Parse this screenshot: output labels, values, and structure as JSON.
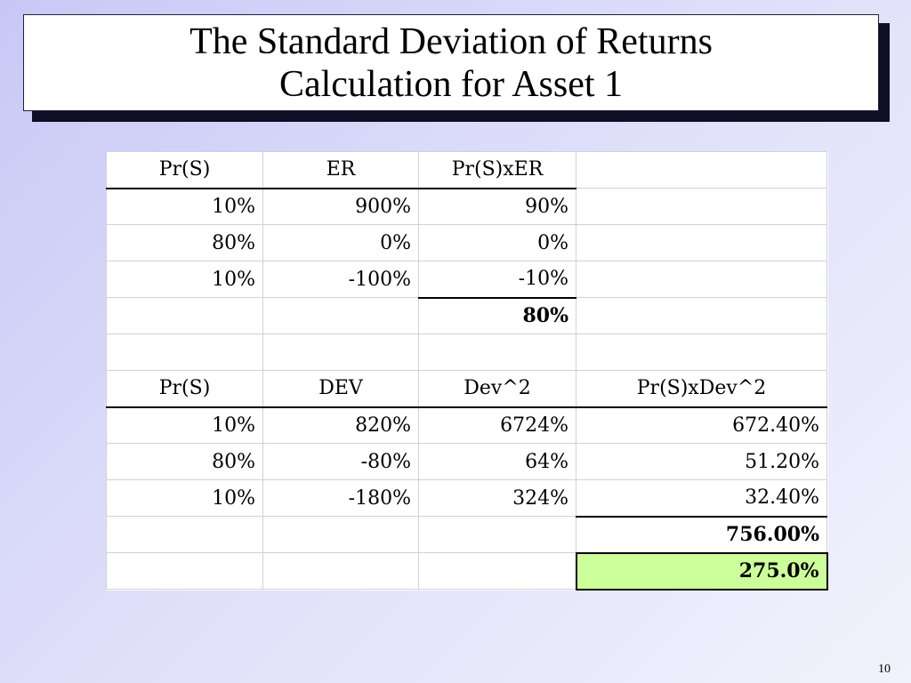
{
  "slide": {
    "title_line1": "The Standard Deviation of Returns",
    "title_line2": "Calculation for Asset 1",
    "page_number": "10"
  },
  "table1": {
    "headers": [
      "Pr(S)",
      "ER",
      "Pr(S)xER"
    ],
    "rows": [
      [
        "10%",
        "900%",
        "90%"
      ],
      [
        "80%",
        "0%",
        "0%"
      ],
      [
        "10%",
        "-100%",
        "-10%"
      ]
    ],
    "total": "80%"
  },
  "table2": {
    "headers": [
      "Pr(S)",
      "DEV",
      "Dev^2",
      "Pr(S)xDev^2"
    ],
    "rows": [
      [
        "10%",
        "820%",
        "6724%",
        "672.40%"
      ],
      [
        "80%",
        "-80%",
        "64%",
        "51.20%"
      ],
      [
        "10%",
        "-180%",
        "324%",
        "32.40%"
      ]
    ],
    "variance": "756.00%",
    "std_dev": "275.0%",
    "std_dev_highlight_color": "#ccff99"
  }
}
